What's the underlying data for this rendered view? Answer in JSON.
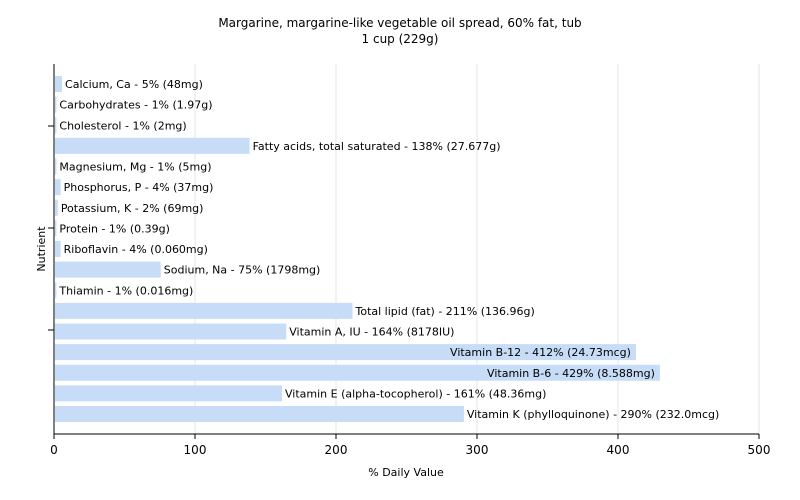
{
  "chart_data": {
    "type": "bar",
    "orientation": "horizontal",
    "title": "Margarine, margarine-like vegetable oil spread, 60% fat, tub",
    "subtitle": "1 cup (229g)",
    "xlabel": "% Daily Value",
    "ylabel": "Nutrient",
    "xlim": [
      0,
      500
    ],
    "xticks": [
      "0",
      "100",
      "200",
      "300",
      "400",
      "500"
    ],
    "grid": true,
    "bar_color": "#c6dcf7",
    "categories": [
      "Calcium, Ca - 5% (48mg)",
      "Carbohydrates - 1% (1.97g)",
      "Cholesterol - 1% (2mg)",
      "Fatty acids, total saturated - 138% (27.677g)",
      "Magnesium, Mg - 1% (5mg)",
      "Phosphorus, P - 4% (37mg)",
      "Potassium, K - 2% (69mg)",
      "Protein - 1% (0.39g)",
      "Riboflavin - 4% (0.060mg)",
      "Sodium, Na - 75% (1798mg)",
      "Thiamin - 1% (0.016mg)",
      "Total lipid (fat) - 211% (136.96g)",
      "Vitamin A, IU - 164% (8178IU)",
      "Vitamin B-12 - 412% (24.73mcg)",
      "Vitamin B-6 - 429% (8.588mg)",
      "Vitamin E (alpha-tocopherol) - 161% (48.36mg)",
      "Vitamin K (phylloquinone) - 290% (232.0mcg)"
    ],
    "values": [
      5,
      1,
      1,
      138,
      1,
      4,
      2,
      1,
      4,
      75,
      1,
      211,
      164,
      412,
      429,
      161,
      290
    ]
  }
}
